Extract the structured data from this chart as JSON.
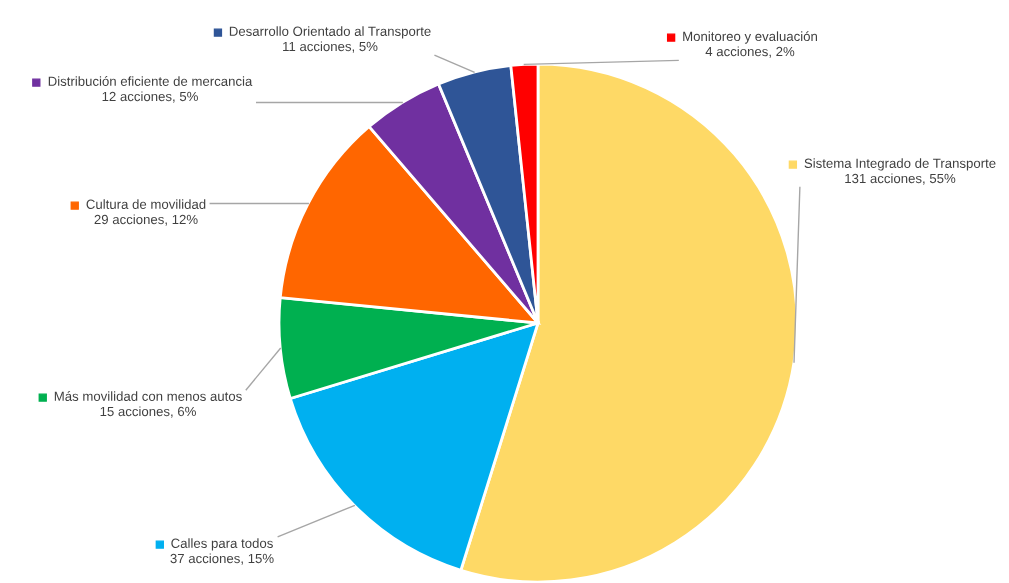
{
  "chart_data": {
    "type": "pie",
    "categories": [
      "Sistema Integrado de Transporte",
      "Calles para todos",
      "Más movilidad con menos autos",
      "Cultura de movilidad",
      "Distribución eficiente de mercancia",
      "Desarrollo Orientado al Transporte",
      "Monitoreo y evaluación"
    ],
    "values": [
      131,
      37,
      15,
      29,
      12,
      11,
      4
    ],
    "value_labels": [
      "131 acciones, 55%",
      "37 acciones, 15%",
      "15 acciones, 6%",
      "29 acciones, 12%",
      "12 acciones, 5%",
      "11 acciones, 5%",
      "4 acciones, 2%"
    ],
    "colors": [
      "#fed966",
      "#00b0f0",
      "#00b050",
      "#ff6600",
      "#7030a0",
      "#2f5597",
      "#ff0000"
    ],
    "legend": "left"
  }
}
